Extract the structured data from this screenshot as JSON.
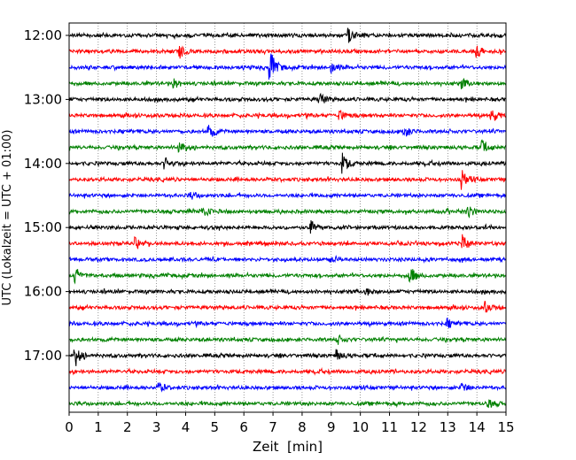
{
  "chart_data": {
    "type": "line",
    "title": "",
    "xlabel": "Zeit  [min]",
    "ylabel": "UTC (Lokalzeit = UTC + 01:00)",
    "xlim": [
      0,
      15
    ],
    "x_ticks": [
      "0",
      "1",
      "2",
      "3",
      "4",
      "5",
      "6",
      "7",
      "8",
      "9",
      "10",
      "11",
      "12",
      "13",
      "14",
      "15"
    ],
    "y_tick_labels": [
      "12:00",
      "13:00",
      "14:00",
      "15:00",
      "16:00",
      "17:00"
    ],
    "grid": "vertical dotted at each minute",
    "trace_start": "12:00",
    "trace_interval_minutes": 15,
    "trace_count": 24,
    "color_cycle": [
      "#000000",
      "#ff0000",
      "#0000ff",
      "#008000"
    ],
    "events": [
      {
        "trace": 0,
        "minute": 9.6,
        "amp": 0.55
      },
      {
        "trace": 1,
        "minute": 3.8,
        "amp": 0.5
      },
      {
        "trace": 1,
        "minute": 14.0,
        "amp": 0.5
      },
      {
        "trace": 2,
        "minute": 6.9,
        "amp": 1.35
      },
      {
        "trace": 2,
        "minute": 9.0,
        "amp": 0.45
      },
      {
        "trace": 3,
        "minute": 3.6,
        "amp": 0.35
      },
      {
        "trace": 3,
        "minute": 13.5,
        "amp": 0.35
      },
      {
        "trace": 4,
        "minute": 8.6,
        "amp": 0.5
      },
      {
        "trace": 5,
        "minute": 14.5,
        "amp": 0.6
      },
      {
        "trace": 5,
        "minute": 9.3,
        "amp": 0.4
      },
      {
        "trace": 6,
        "minute": 4.8,
        "amp": 0.6
      },
      {
        "trace": 6,
        "minute": 11.5,
        "amp": 0.5
      },
      {
        "trace": 7,
        "minute": 3.8,
        "amp": 0.6
      },
      {
        "trace": 7,
        "minute": 14.2,
        "amp": 0.5
      },
      {
        "trace": 8,
        "minute": 9.4,
        "amp": 0.7
      },
      {
        "trace": 8,
        "minute": 3.3,
        "amp": 0.4
      },
      {
        "trace": 9,
        "minute": 13.5,
        "amp": 0.7
      },
      {
        "trace": 10,
        "minute": 4.2,
        "amp": 0.25
      },
      {
        "trace": 11,
        "minute": 4.6,
        "amp": 0.55
      },
      {
        "trace": 11,
        "minute": 13.7,
        "amp": 0.45
      },
      {
        "trace": 12,
        "minute": 8.3,
        "amp": 0.5
      },
      {
        "trace": 13,
        "minute": 13.5,
        "amp": 0.7
      },
      {
        "trace": 13,
        "minute": 2.3,
        "amp": 0.4
      },
      {
        "trace": 14,
        "minute": 9.0,
        "amp": 0.3
      },
      {
        "trace": 15,
        "minute": 11.7,
        "amp": 0.7
      },
      {
        "trace": 15,
        "minute": 0.2,
        "amp": 0.5
      },
      {
        "trace": 16,
        "minute": 10.2,
        "amp": 0.3
      },
      {
        "trace": 17,
        "minute": 14.3,
        "amp": 0.4
      },
      {
        "trace": 18,
        "minute": 13.0,
        "amp": 0.3
      },
      {
        "trace": 19,
        "minute": 9.2,
        "amp": 0.35
      },
      {
        "trace": 20,
        "minute": 0.2,
        "amp": 0.9
      },
      {
        "trace": 20,
        "minute": 9.2,
        "amp": 0.4
      },
      {
        "trace": 22,
        "minute": 13.5,
        "amp": 0.4
      },
      {
        "trace": 22,
        "minute": 3.1,
        "amp": 0.35
      },
      {
        "trace": 23,
        "minute": 14.4,
        "amp": 0.3
      }
    ]
  }
}
